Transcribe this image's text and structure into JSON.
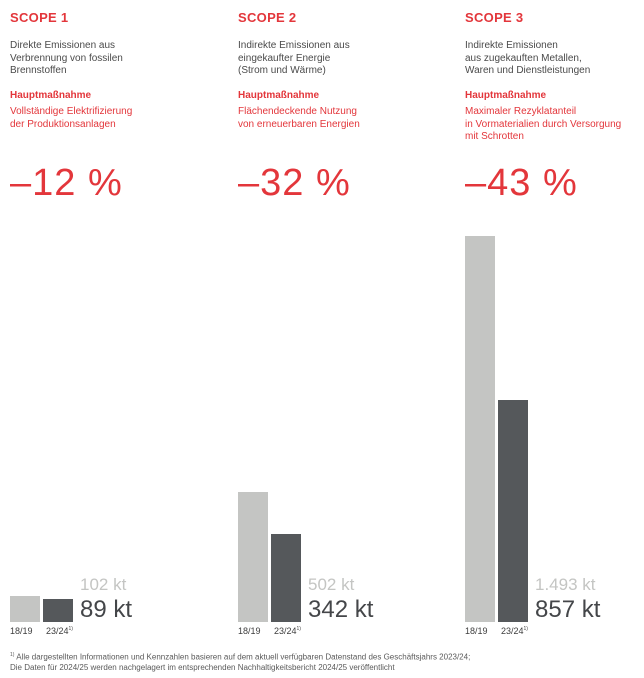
{
  "chart_data": [
    {
      "type": "bar",
      "title": "SCOPE 1",
      "description": "Direkte Emissionen aus\nVerbrennung von fossilen\nBrennstoffen",
      "measure_label": "Hauptmaßnahme",
      "measure": "Vollständige Elektrifizierung\nder Produktionsanlagen",
      "change": "–12 %",
      "unit": "kt",
      "categories": [
        "18/19",
        "23/24"
      ],
      "values": [
        102,
        89
      ],
      "value_labels": [
        "102 kt",
        "89 kt"
      ],
      "footnote_marker": "1)"
    },
    {
      "type": "bar",
      "title": "SCOPE 2",
      "description": "Indirekte Emissionen aus\neingekaufter Energie\n(Strom und Wärme)",
      "measure_label": "Hauptmaßnahme",
      "measure": "Flächendeckende Nutzung\nvon erneuerbaren Energien",
      "change": "–32 %",
      "unit": "kt",
      "categories": [
        "18/19",
        "23/24"
      ],
      "values": [
        502,
        342
      ],
      "value_labels": [
        "502 kt",
        "342 kt"
      ],
      "footnote_marker": "1)"
    },
    {
      "type": "bar",
      "title": "SCOPE 3",
      "description": "Indirekte Emissionen\naus zugekauften Metallen,\nWaren und Dienstleistungen",
      "measure_label": "Hauptmaßnahme",
      "measure": "Maximaler Rezyklatanteil\nin Vormaterialien durch Versorgung\nmit Schrotten",
      "change": "–43 %",
      "unit": "kt",
      "categories": [
        "18/19",
        "23/24"
      ],
      "values": [
        1493,
        857
      ],
      "value_labels": [
        "1.493 kt",
        "857 kt"
      ],
      "footnote_marker": "1)"
    }
  ],
  "colors": {
    "accent": "#e3363b",
    "base_bar": "#c4c5c3",
    "current_bar": "#55585b"
  },
  "footnote": {
    "marker": "1)",
    "text": "Alle dargestellten Informationen und Kennzahlen basieren auf dem aktuell verfügbaren Datenstand des Geschäftsjahrs 2023/24;\nDie Daten für 2024/25 werden nachgelagert im entsprechenden Nachhaltigkeitsbericht 2024/25 veröffentlicht"
  }
}
